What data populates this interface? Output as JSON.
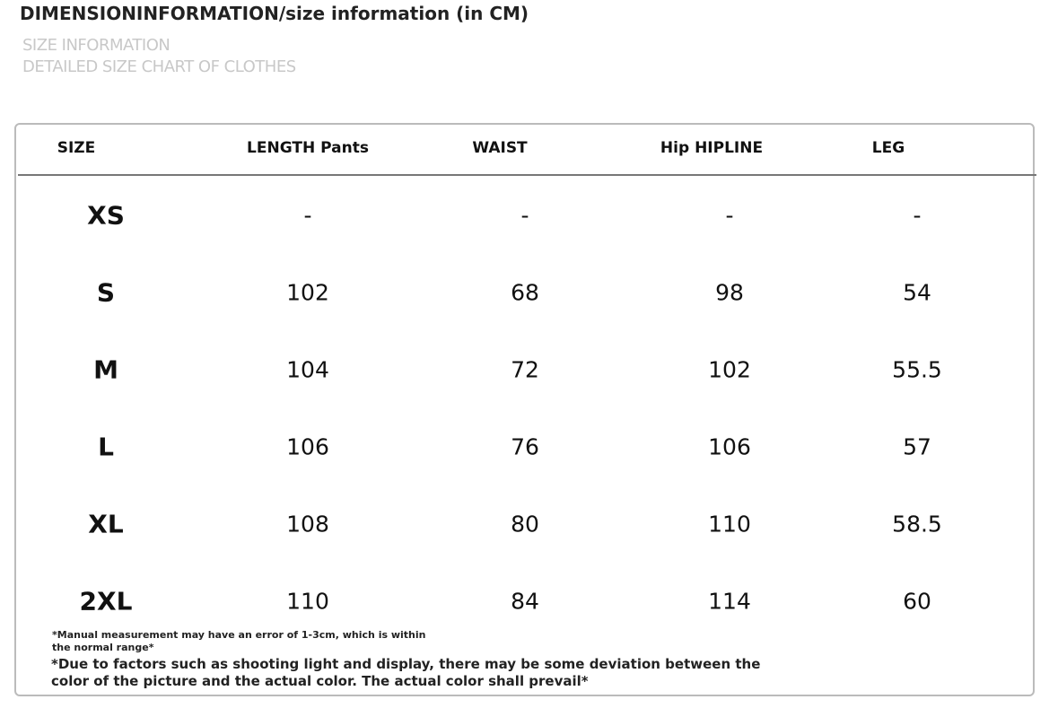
{
  "header": {
    "title": "DIMENSIONINFORMATION/size information (in CM)",
    "subtitle_lines": [
      "SIZE INFORMATION",
      "DETAILED SIZE CHART OF CLOTHES"
    ]
  },
  "table": {
    "columns": [
      "SIZE",
      "LENGTH Pants",
      "WAIST",
      "Hip HIPLINE",
      "LEG"
    ],
    "rows": [
      [
        "XS",
        "-",
        "-",
        "-",
        "-"
      ],
      [
        "S",
        102,
        68,
        98,
        54
      ],
      [
        "M",
        104,
        72,
        102,
        55.5
      ],
      [
        "L",
        106,
        76,
        106,
        57
      ],
      [
        "XL",
        108,
        80,
        110,
        58.5
      ],
      [
        "2XL",
        110,
        84,
        114,
        60
      ]
    ]
  },
  "notes": [
    "*Manual measurement may have an error of 1-3cm, which is within the normal range*",
    "*Due to factors such as shooting light and display, there may be some deviation between the color of the picture and the actual color. The actual color shall prevail*"
  ]
}
